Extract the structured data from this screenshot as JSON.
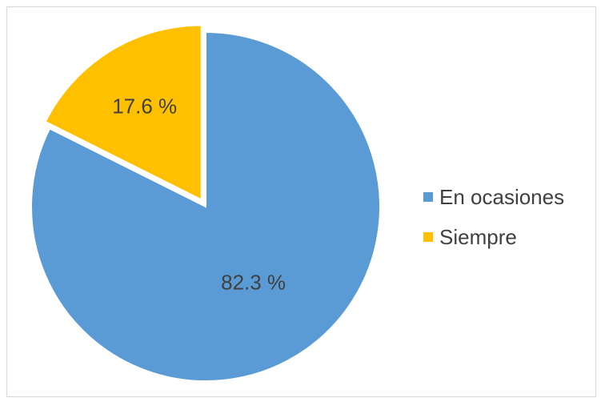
{
  "chart_data": {
    "type": "pie",
    "slices": [
      {
        "name": "En ocasiones",
        "value": 82.3,
        "label": "82.3 %",
        "color": "#5B9BD5",
        "exploded": false
      },
      {
        "name": "Siempre",
        "value": 17.6,
        "label": "17.6 %",
        "color": "#FFC000",
        "exploded": true
      }
    ],
    "legend_placement": "right"
  },
  "legend": {
    "items": [
      {
        "label": "En ocasiones",
        "color": "#5B9BD5"
      },
      {
        "label": "Siempre",
        "color": "#FFC000"
      }
    ]
  }
}
